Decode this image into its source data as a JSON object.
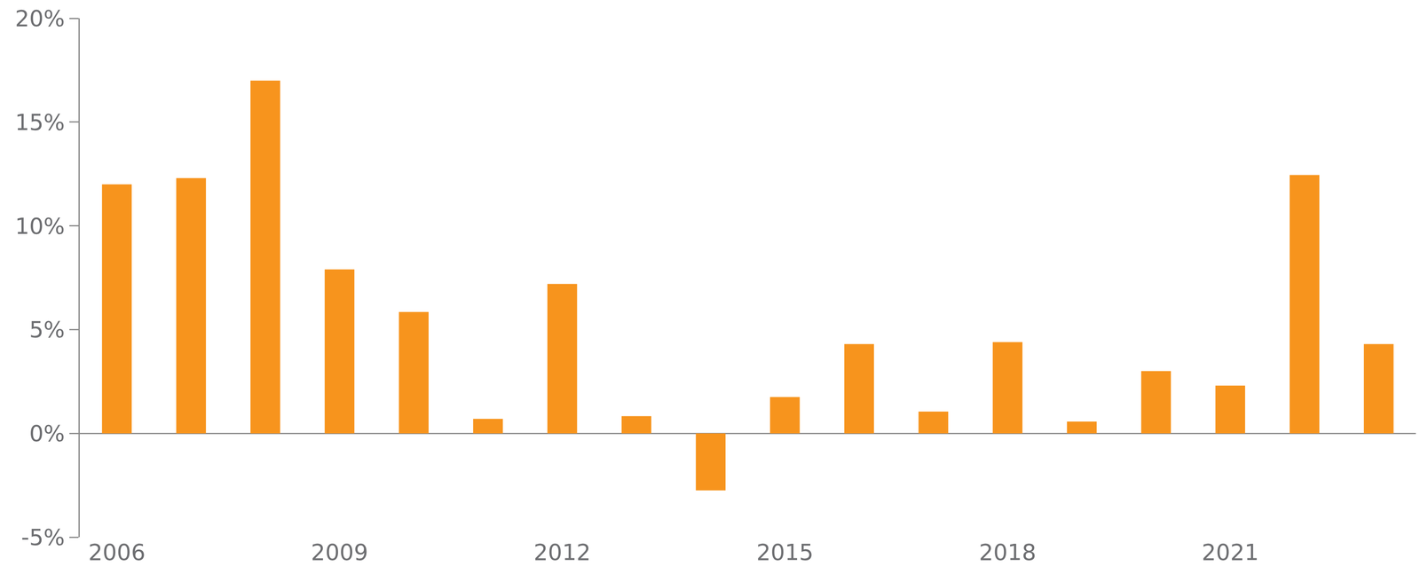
{
  "chart_data": {
    "type": "bar",
    "categories": [
      "2006",
      null,
      null,
      "2009",
      null,
      null,
      "2012",
      null,
      null,
      "2015",
      null,
      null,
      "2018",
      null,
      null,
      "2021",
      null,
      null
    ],
    "values": [
      12.0,
      12.3,
      17.0,
      7.9,
      5.85,
      0.7,
      7.2,
      0.83,
      -2.75,
      1.75,
      4.3,
      1.05,
      4.4,
      0.57,
      3.0,
      2.3,
      12.45,
      4.3
    ],
    "color": "#f7941d",
    "ylim": [
      -5,
      20
    ],
    "yticks": [
      {
        "value": -5,
        "label": "-5%"
      },
      {
        "value": 0,
        "label": "0%"
      },
      {
        "value": 5,
        "label": "5%"
      },
      {
        "value": 10,
        "label": "10%"
      },
      {
        "value": 15,
        "label": "15%"
      },
      {
        "value": 20,
        "label": "20%"
      }
    ],
    "grid": false
  }
}
